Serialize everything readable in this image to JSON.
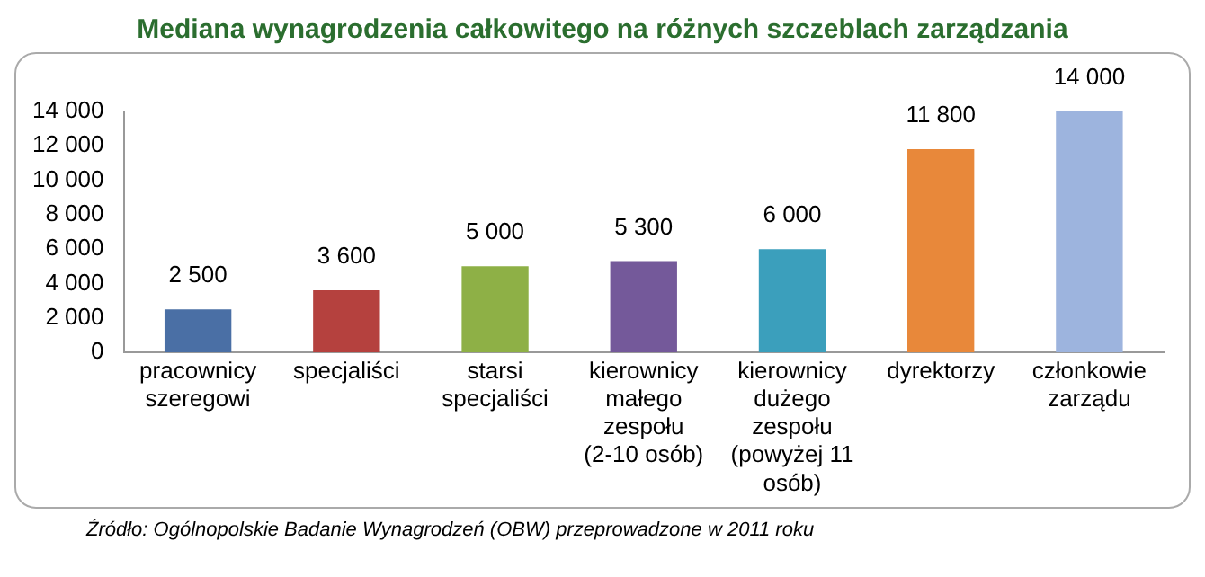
{
  "chart_data": {
    "type": "bar",
    "title": "Mediana wynagrodzenia całkowitego na różnych szczeblach zarządzania",
    "categories": [
      "pracownicy szeregowi",
      "specjaliści",
      "starsi specjaliści",
      "kierownicy małego zespołu (2-10 osób)",
      "kierownicy dużego zespołu (powyżej 11 osób)",
      "dyrektorzy",
      "członkowie zarządu"
    ],
    "values": [
      2500,
      3600,
      5000,
      5300,
      6000,
      11800,
      14000
    ],
    "value_labels": [
      "2 500",
      "3 600",
      "5 000",
      "5 300",
      "6 000",
      "11 800",
      "14 000"
    ],
    "colors": [
      "#4a6fa5",
      "#b5413e",
      "#8eb046",
      "#74599a",
      "#3b9fbc",
      "#e8883a",
      "#9db4de"
    ],
    "ylim": [
      0,
      14000
    ],
    "yticks": [
      {
        "value": 0,
        "label": "0"
      },
      {
        "value": 2000,
        "label": "2 000"
      },
      {
        "value": 4000,
        "label": "4 000"
      },
      {
        "value": 6000,
        "label": "6 000"
      },
      {
        "value": 8000,
        "label": "8 000"
      },
      {
        "value": 10000,
        "label": "10 000"
      },
      {
        "value": 12000,
        "label": "12 000"
      },
      {
        "value": 14000,
        "label": "14 000"
      }
    ],
    "grid": false,
    "annotations": [
      "Źródło: Ogólnopolskie Badanie Wynagrodzeń (OBW) przeprowadzone w 2011 roku"
    ]
  }
}
